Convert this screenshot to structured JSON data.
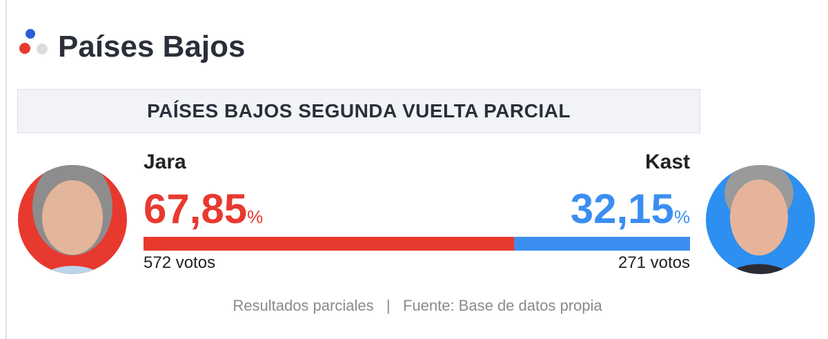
{
  "header": {
    "title": "Países Bajos"
  },
  "banner": "PAÍSES BAJOS SEGUNDA VUELTA PARCIAL",
  "unit": "%",
  "candidates": [
    {
      "name": "Jara",
      "percent": {
        "value": 67.85,
        "label": "67,85"
      },
      "votes": "572 votos",
      "color": "#e8392f"
    },
    {
      "name": "Kast",
      "percent": {
        "value": 32.15,
        "label": "32,15"
      },
      "votes": "271 votos",
      "color": "#3b8ef0"
    }
  ],
  "footer": "Resultados parciales   |   Fuente: Base de datos propia"
}
